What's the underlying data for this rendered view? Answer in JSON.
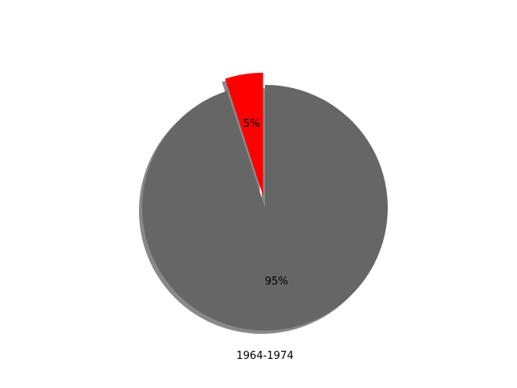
{
  "chart_data": {
    "type": "pie",
    "labels": [
      "",
      ""
    ],
    "values": [
      5,
      95
    ],
    "pct_labels": [
      "5%",
      "95%"
    ],
    "colors": [
      "#ff0000",
      "#666666"
    ],
    "explode": [
      0.1,
      0
    ],
    "shadow": true,
    "start_angle_deg": 90,
    "xlabel": "1964-1974",
    "title": ""
  }
}
